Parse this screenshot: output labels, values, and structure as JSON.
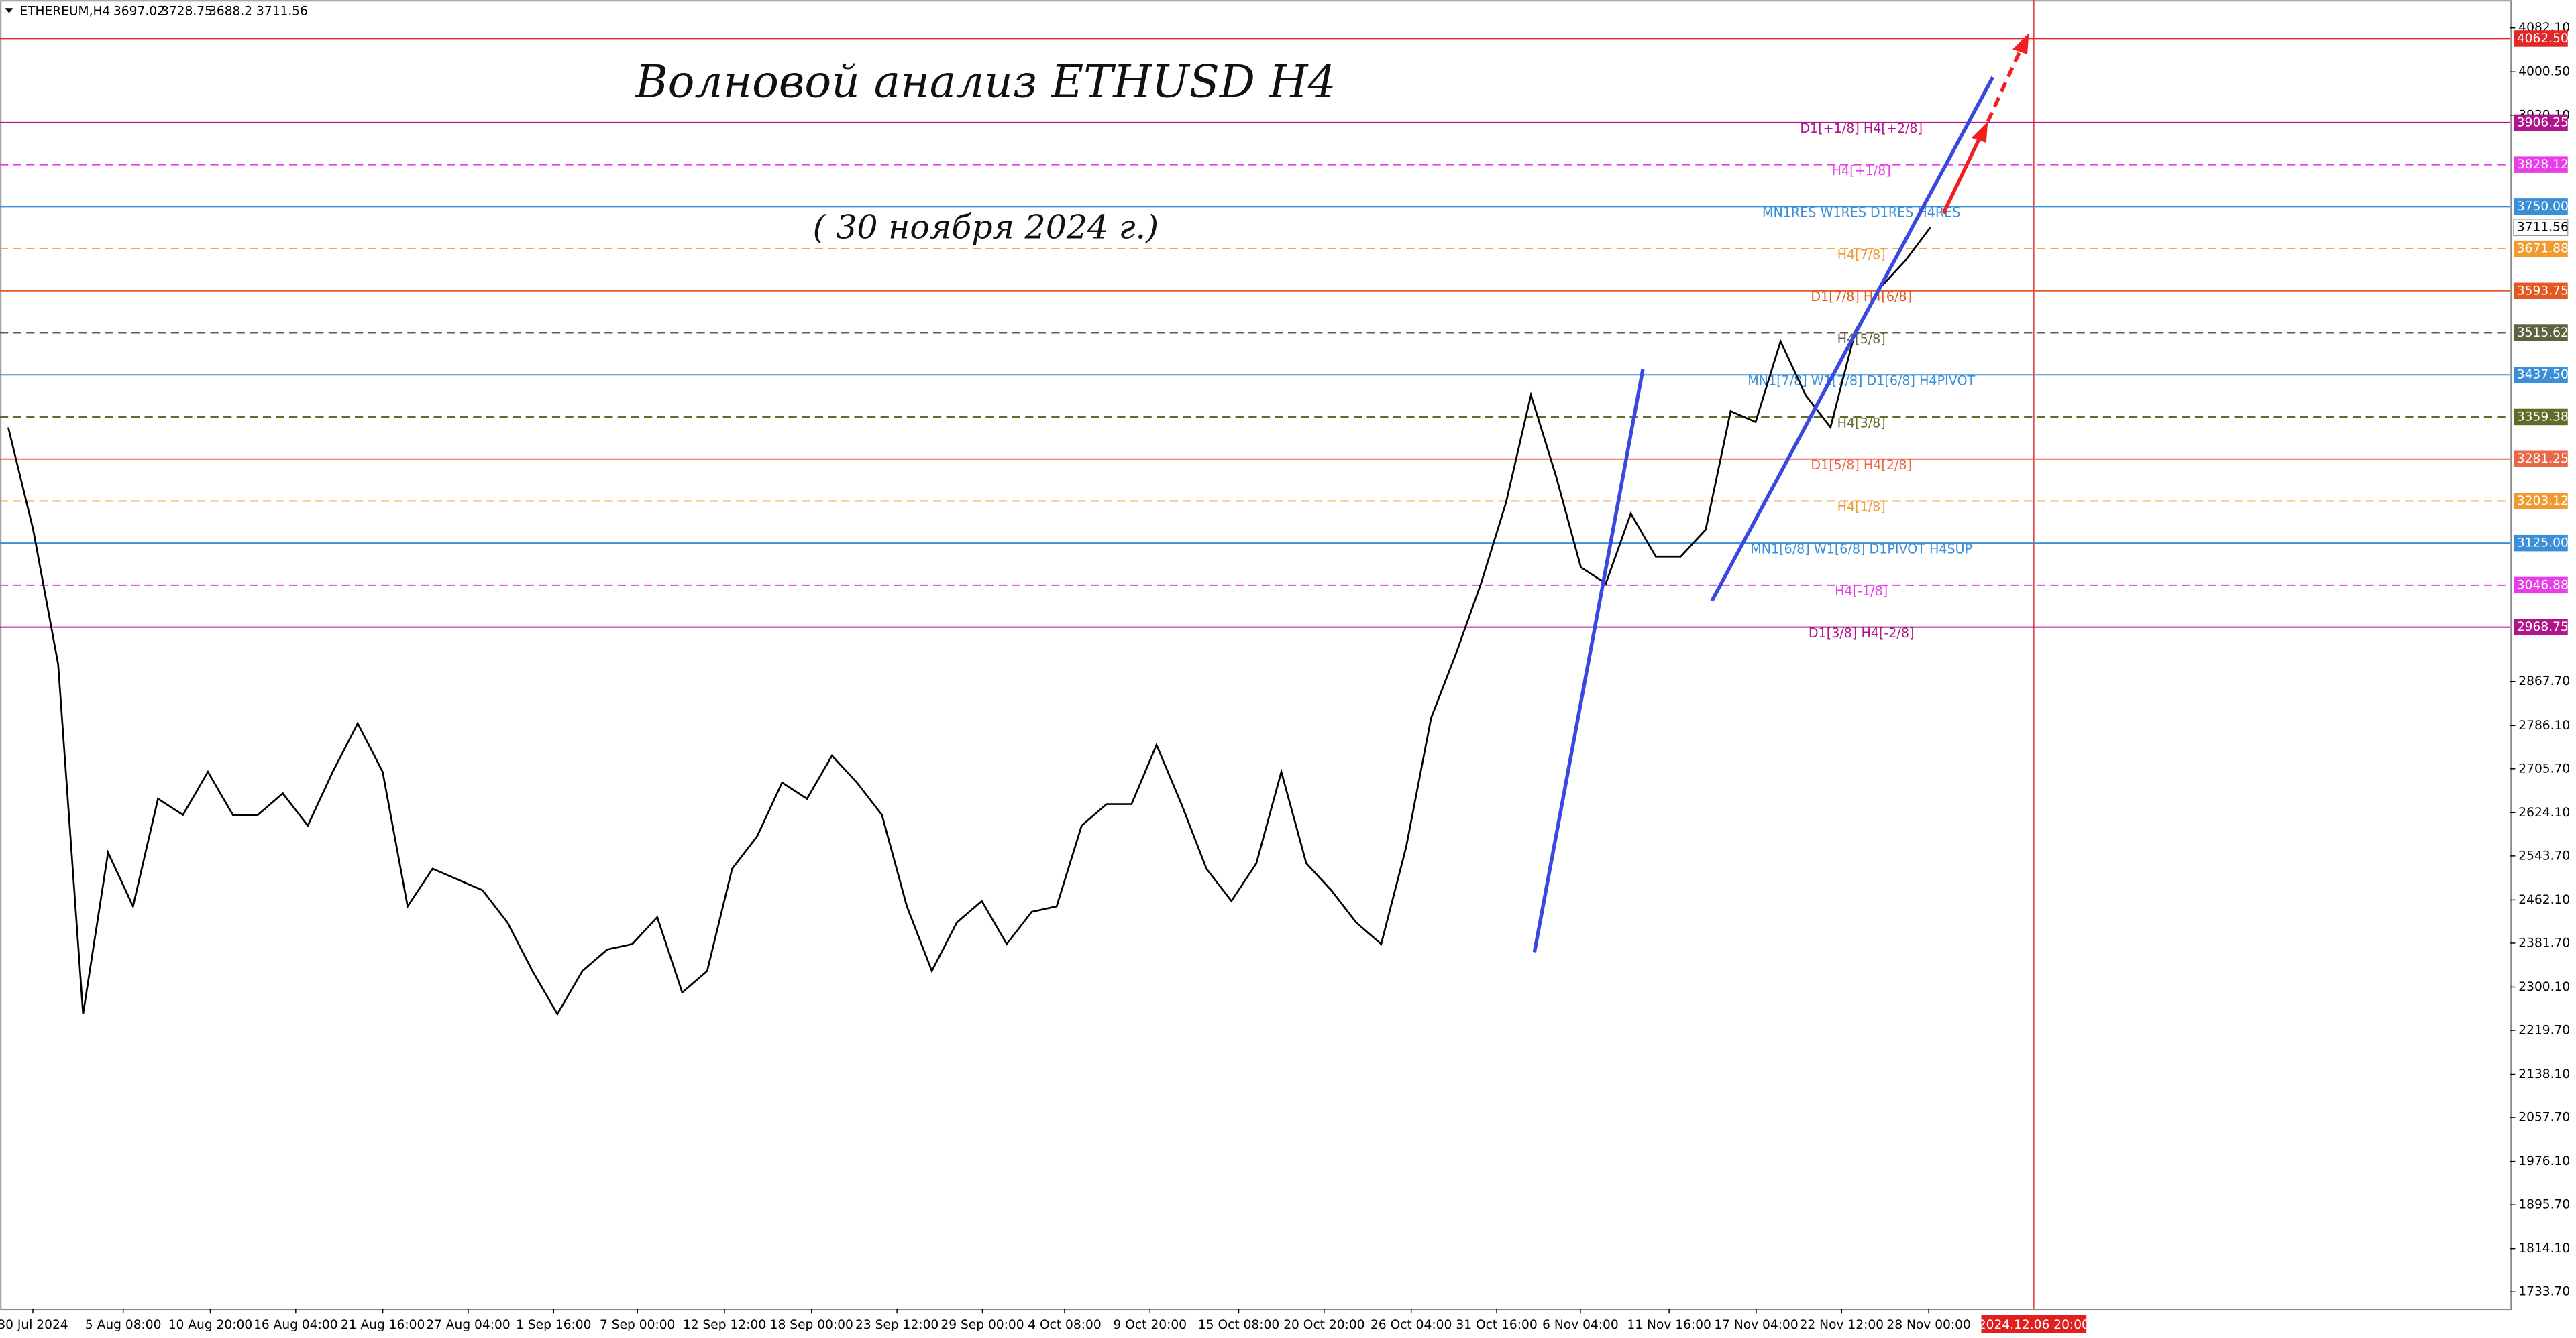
{
  "chart_data": {
    "type": "line",
    "symbol": "ETHEREUM,H4",
    "ohlc": [
      3697.02,
      3728.75,
      3688.2,
      3711.56
    ],
    "title": "Волновой анализ ETHUSD H4",
    "subtitle": "( 30 ноября 2024 г.)",
    "ylim": [
      1703,
      4134
    ],
    "yticks": [
      {
        "value": 4082.1,
        "label": "4082.10"
      },
      {
        "value": 4000.5,
        "label": "4000.50"
      },
      {
        "value": 3920.1,
        "label": "3920.10"
      },
      {
        "value": 2867.7,
        "label": "2867.70"
      },
      {
        "value": 2786.1,
        "label": "2786.10"
      },
      {
        "value": 2705.7,
        "label": "2705.70"
      },
      {
        "value": 2624.1,
        "label": "2624.10"
      },
      {
        "value": 2543.7,
        "label": "2543.70"
      },
      {
        "value": 2462.1,
        "label": "2462.10"
      },
      {
        "value": 2381.7,
        "label": "2381.70"
      },
      {
        "value": 2300.1,
        "label": "2300.10"
      },
      {
        "value": 2219.7,
        "label": "2219.70"
      },
      {
        "value": 2138.1,
        "label": "2138.10"
      },
      {
        "value": 2057.7,
        "label": "2057.70"
      },
      {
        "value": 1976.1,
        "label": "1976.10"
      },
      {
        "value": 1895.7,
        "label": "1895.70"
      },
      {
        "value": 1814.1,
        "label": "1814.10"
      },
      {
        "value": 1733.7,
        "label": "1733.70"
      }
    ],
    "categories": [
      "30 Jul 2024",
      "5 Aug 08:00",
      "10 Aug 20:00",
      "16 Aug 04:00",
      "21 Aug 16:00",
      "27 Aug 04:00",
      "1 Sep 16:00",
      "7 Sep 00:00",
      "12 Sep 12:00",
      "18 Sep 00:00",
      "23 Sep 12:00",
      "29 Sep 00:00",
      "4 Oct 08:00",
      "9 Oct 20:00",
      "15 Oct 08:00",
      "20 Oct 20:00",
      "26 Oct 04:00",
      "31 Oct 16:00",
      "6 Nov 04:00",
      "11 Nov 16:00",
      "17 Nov 04:00",
      "22 Nov 12:00",
      "28 Nov 00:00"
    ],
    "future_date": "2024.12.06 20:00",
    "price": {
      "color": "#000000",
      "values": [
        3340,
        3150,
        2900,
        2250,
        2550,
        2450,
        2650,
        2620,
        2700,
        2620,
        2620,
        2660,
        2600,
        2700,
        2790,
        2700,
        2450,
        2520,
        2500,
        2480,
        2420,
        2330,
        2250,
        2330,
        2370,
        2380,
        2430,
        2290,
        2330,
        2520,
        2580,
        2680,
        2650,
        2730,
        2680,
        2620,
        2450,
        2330,
        2420,
        2460,
        2380,
        2440,
        2450,
        2600,
        2640,
        2640,
        2750,
        2640,
        2520,
        2460,
        2530,
        2700,
        2530,
        2480,
        2420,
        2380,
        2560,
        2800,
        2920,
        3050,
        3200,
        3400,
        3250,
        3080,
        3050,
        3180,
        3100,
        3100,
        3150,
        3370,
        3350,
        3500,
        3400,
        3340,
        3520,
        3600,
        3650,
        3711.56
      ]
    },
    "levels": [
      {
        "price": 4062.5,
        "price_label": "4062.50",
        "color": "#e02828",
        "dashed": false
      },
      {
        "price": 3906.25,
        "price_label": "3906.25",
        "text": "D1[+1/8] H4[+2/8]",
        "color": "#b0158a",
        "dashed": false
      },
      {
        "price": 3828.12,
        "price_label": "3828.12",
        "text": "H4[+1/8]",
        "color": "#e83ee8",
        "dashed": true
      },
      {
        "price": 3750,
        "price_label": "3750.00",
        "text": "MN1RES W1RES D1RES H4RES",
        "color": "#3a8fd8",
        "dashed": false
      },
      {
        "price": 3671.88,
        "price_label": "3671.88",
        "text": "H4[7/8]",
        "color": "#f09a30",
        "dashed": true
      },
      {
        "price": 3593.75,
        "price_label": "3593.75",
        "text": "D1[7/8] H4[6/8]",
        "color": "#e25a22",
        "dashed": false
      },
      {
        "price": 3515.62,
        "price_label": "3515.62",
        "text": "H4[5/8]",
        "color": "#5f6240",
        "dashed": true
      },
      {
        "price": 3437.5,
        "price_label": "3437.50",
        "text": "MN1[7/8] W1[7/8] D1[6/8] H4PIVOT",
        "color": "#3a8fd8",
        "dashed": false
      },
      {
        "price": 3359.38,
        "price_label": "3359.38",
        "text": "H4[3/8]",
        "color": "#5e6d28",
        "dashed": true
      },
      {
        "price": 3281.25,
        "price_label": "3281.25",
        "text": "D1[5/8] H4[2/8]",
        "color": "#e86848",
        "dashed": false
      },
      {
        "price": 3203.12,
        "price_label": "3203.12",
        "text": "H4[1/8]",
        "color": "#f09a30",
        "dashed": true
      },
      {
        "price": 3125,
        "price_label": "3125.00",
        "text": "MN1[6/8] W1[6/8] D1PIVOT H4SUP",
        "color": "#3a8fd8",
        "dashed": false
      },
      {
        "price": 3046.88,
        "price_label": "3046.88",
        "text": "H4[-1/8]",
        "color": "#e83ee8",
        "dashed": true
      },
      {
        "price": 2968.75,
        "price_label": "2968.75",
        "text": "D1[3/8] H4[-2/8]",
        "color": "#b0158a",
        "dashed": false
      }
    ]
  }
}
